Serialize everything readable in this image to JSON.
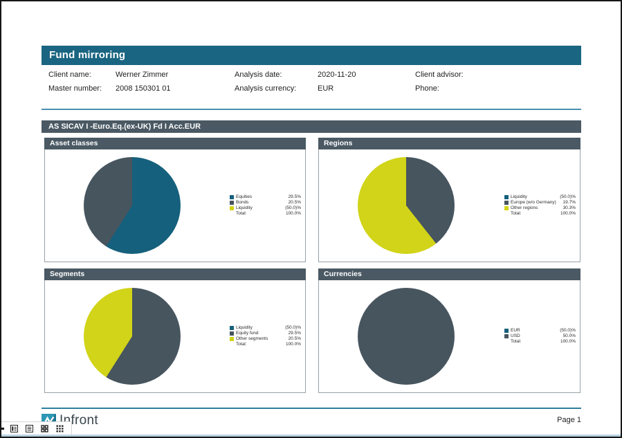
{
  "app": {
    "toolbar_icons": [
      "collapse-handle-icon",
      "page-layout-icon",
      "single-page-icon",
      "grid-2x2-icon",
      "grid-3x3-icon"
    ],
    "bottom_strip_color": "#b7d2e0"
  },
  "report": {
    "title": "Fund mirroring",
    "info_pairs": [
      {
        "label": "Client name:",
        "value": "Werner Zimmer"
      },
      {
        "label": "Analysis date:",
        "value": "2020-11-20"
      },
      {
        "label": "Client advisor:",
        "value": ""
      },
      {
        "label": "Master number:",
        "value": "2008 150301 01"
      },
      {
        "label": "Analysis currency:",
        "value": "EUR"
      },
      {
        "label": "Phone:",
        "value": ""
      }
    ],
    "section_title": "AS SICAV I -Euro.Eq.(ex-UK) Fd I Acc.EUR",
    "footer": {
      "brand": "Infront",
      "page_label": "Page 1"
    }
  },
  "colors": {
    "banner_teal": "#1a6581",
    "section_slate": "#4a5963",
    "pie_teal": "#15607c",
    "pie_slate": "#47555f",
    "pie_yellow": "#d1d418",
    "divider_blue": "#4a8fb0"
  },
  "chart_data": [
    {
      "type": "pie",
      "title": "Asset classes",
      "legend_position": "right",
      "slices": [
        {
          "label": "Equities",
          "value": 29.5,
          "value_text": "29.5%",
          "color": "#15607c",
          "pie_share": 0.59
        },
        {
          "label": "Bonds",
          "value": 20.5,
          "value_text": "20.5%",
          "color": "#47555f",
          "pie_share": 0.41
        },
        {
          "label": "Liquidity",
          "value": -50.0,
          "value_text": "(50.0)%",
          "color": "#d1d418",
          "pie_share": 0
        }
      ],
      "total_label": "Total:",
      "total_text": "100.0%"
    },
    {
      "type": "pie",
      "title": "Regions",
      "legend_position": "right",
      "slices": [
        {
          "label": "Liquidity",
          "value": -50.0,
          "value_text": "(50.0)%",
          "color": "#15607c",
          "pie_share": 0
        },
        {
          "label": "Europe (w/o Germany)",
          "value": 19.7,
          "value_text": "19.7%",
          "color": "#47555f",
          "pie_share": 0.394
        },
        {
          "label": "Other regions",
          "value": 30.3,
          "value_text": "30.3%",
          "color": "#d1d418",
          "pie_share": 0.606
        }
      ],
      "total_label": "Total:",
      "total_text": "100.0%"
    },
    {
      "type": "pie",
      "title": "Segments",
      "legend_position": "right",
      "slices": [
        {
          "label": "Liquidity",
          "value": -50.0,
          "value_text": "(50.0)%",
          "color": "#15607c",
          "pie_share": 0
        },
        {
          "label": "Equity fund",
          "value": 29.5,
          "value_text": "29.5%",
          "color": "#47555f",
          "pie_share": 0.59
        },
        {
          "label": "Other segments",
          "value": 20.5,
          "value_text": "20.5%",
          "color": "#d1d418",
          "pie_share": 0.41
        }
      ],
      "total_label": "Total:",
      "total_text": "100.0%"
    },
    {
      "type": "pie",
      "title": "Currencies",
      "legend_position": "right",
      "slices": [
        {
          "label": "EUR",
          "value": -50.0,
          "value_text": "(50.0)%",
          "color": "#15607c",
          "pie_share": 0
        },
        {
          "label": "USD",
          "value": 50.0,
          "value_text": "50.0%",
          "color": "#47555f",
          "pie_share": 1.0
        }
      ],
      "total_label": "Total:",
      "total_text": "100.0%"
    }
  ]
}
